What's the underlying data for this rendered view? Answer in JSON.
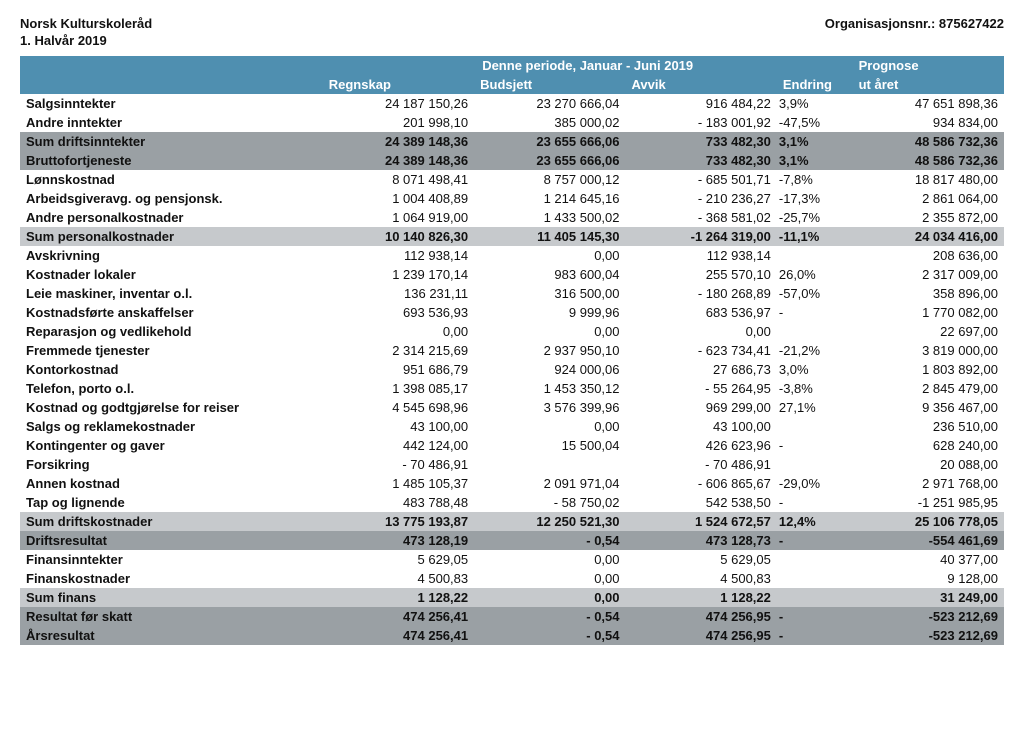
{
  "header": {
    "org_line1": "Norsk Kulturskoleråd",
    "org_line2": "1. Halvår 2019",
    "orgnr_label": "Organisasjonsnr.: 875627422"
  },
  "table": {
    "colors": {
      "header_bg": "#4f8fb0",
      "header_fg": "#ffffff",
      "sum_mid_bg": "#9aa0a4",
      "sum_lite_bg": "#c6c9cc"
    },
    "columns": {
      "period_span": "Denne periode, Januar - Juni 2019",
      "prognose": "Prognose",
      "c1": "Regnskap",
      "c2": "Budsjett",
      "c3": "Avvik",
      "c4": "Endring",
      "c5": "ut året"
    },
    "rows": [
      {
        "style": "plain",
        "label": "Salgsinntekter",
        "regnskap": "24 187 150,26",
        "budsjett": "23 270 666,04",
        "avvik": "916 484,22",
        "endring": "3,9%",
        "prognose": "47 651 898,36"
      },
      {
        "style": "plain",
        "label": "Andre inntekter",
        "regnskap": "201 998,10",
        "budsjett": "385 000,02",
        "avvik": "- 183 001,92",
        "endring": "-47,5%",
        "prognose": "934 834,00"
      },
      {
        "style": "sum-mid",
        "label": "Sum driftsinntekter",
        "regnskap": "24 389 148,36",
        "budsjett": "23 655 666,06",
        "avvik": "733 482,30",
        "endring": "3,1%",
        "prognose": "48 586 732,36"
      },
      {
        "style": "sum-mid",
        "label": "Bruttofortjeneste",
        "regnskap": "24 389 148,36",
        "budsjett": "23 655 666,06",
        "avvik": "733 482,30",
        "endring": "3,1%",
        "prognose": "48 586 732,36"
      },
      {
        "style": "plain",
        "label": "Lønnskostnad",
        "regnskap": "8 071 498,41",
        "budsjett": "8 757 000,12",
        "avvik": "- 685 501,71",
        "endring": "-7,8%",
        "prognose": "18 817 480,00"
      },
      {
        "style": "plain",
        "label": "Arbeidsgiveravg. og pensjonsk.",
        "regnskap": "1 004 408,89",
        "budsjett": "1 214 645,16",
        "avvik": "- 210 236,27",
        "endring": "-17,3%",
        "prognose": "2 861 064,00"
      },
      {
        "style": "plain",
        "label": "Andre personalkostnader",
        "regnskap": "1 064 919,00",
        "budsjett": "1 433 500,02",
        "avvik": "- 368 581,02",
        "endring": "-25,7%",
        "prognose": "2 355 872,00"
      },
      {
        "style": "sum-lite",
        "label": "Sum personalkostnader",
        "regnskap": "10 140 826,30",
        "budsjett": "11 405 145,30",
        "avvik": "-1 264 319,00",
        "endring": "-11,1%",
        "prognose": "24 034 416,00"
      },
      {
        "style": "plain",
        "label": "Avskrivning",
        "regnskap": "112 938,14",
        "budsjett": "0,00",
        "avvik": "112 938,14",
        "endring": "",
        "prognose": "208 636,00"
      },
      {
        "style": "plain",
        "label": "Kostnader lokaler",
        "regnskap": "1 239 170,14",
        "budsjett": "983 600,04",
        "avvik": "255 570,10",
        "endring": "26,0%",
        "prognose": "2 317 009,00"
      },
      {
        "style": "plain",
        "label": "Leie maskiner, inventar o.l.",
        "regnskap": "136 231,11",
        "budsjett": "316 500,00",
        "avvik": "- 180 268,89",
        "endring": "-57,0%",
        "prognose": "358 896,00"
      },
      {
        "style": "plain",
        "label": "Kostnadsførte anskaffelser",
        "regnskap": "693 536,93",
        "budsjett": "9 999,96",
        "avvik": "683 536,97",
        "endring": "-",
        "prognose": "1 770 082,00"
      },
      {
        "style": "plain",
        "label": "Reparasjon og vedlikehold",
        "regnskap": "0,00",
        "budsjett": "0,00",
        "avvik": "0,00",
        "endring": "",
        "prognose": "22 697,00"
      },
      {
        "style": "plain",
        "label": "Fremmede tjenester",
        "regnskap": "2 314 215,69",
        "budsjett": "2 937 950,10",
        "avvik": "- 623 734,41",
        "endring": "-21,2%",
        "prognose": "3 819 000,00"
      },
      {
        "style": "plain",
        "label": "Kontorkostnad",
        "regnskap": "951 686,79",
        "budsjett": "924 000,06",
        "avvik": "27 686,73",
        "endring": "3,0%",
        "prognose": "1 803 892,00"
      },
      {
        "style": "plain",
        "label": "Telefon, porto o.l.",
        "regnskap": "1 398 085,17",
        "budsjett": "1 453 350,12",
        "avvik": "- 55 264,95",
        "endring": "-3,8%",
        "prognose": "2 845 479,00"
      },
      {
        "style": "plain",
        "label": "Kostnad og godtgjørelse for reiser",
        "regnskap": "4 545 698,96",
        "budsjett": "3 576 399,96",
        "avvik": "969 299,00",
        "endring": "27,1%",
        "prognose": "9 356 467,00"
      },
      {
        "style": "plain",
        "label": "Salgs og reklamekostnader",
        "regnskap": "43 100,00",
        "budsjett": "0,00",
        "avvik": "43 100,00",
        "endring": "",
        "prognose": "236 510,00"
      },
      {
        "style": "plain",
        "label": "Kontingenter og gaver",
        "regnskap": "442 124,00",
        "budsjett": "15 500,04",
        "avvik": "426 623,96",
        "endring": "-",
        "prognose": "628 240,00"
      },
      {
        "style": "plain",
        "label": "Forsikring",
        "regnskap": "- 70 486,91",
        "budsjett": "",
        "avvik": "- 70 486,91",
        "endring": "",
        "prognose": "20 088,00"
      },
      {
        "style": "plain",
        "label": "Annen kostnad",
        "regnskap": "1 485 105,37",
        "budsjett": "2 091 971,04",
        "avvik": "- 606 865,67",
        "endring": "-29,0%",
        "prognose": "2 971 768,00"
      },
      {
        "style": "plain",
        "label": "Tap og lignende",
        "regnskap": "483 788,48",
        "budsjett": "- 58 750,02",
        "avvik": "542 538,50",
        "endring": "-",
        "prognose": "-1 251 985,95"
      },
      {
        "style": "sum-lite",
        "label": "Sum driftskostnader",
        "regnskap": "13 775 193,87",
        "budsjett": "12 250 521,30",
        "avvik": "1 524 672,57",
        "endring": "12,4%",
        "prognose": "25 106 778,05"
      },
      {
        "style": "sum-mid",
        "label": "Driftsresultat",
        "regnskap": "473 128,19",
        "budsjett": "- 0,54",
        "avvik": "473 128,73",
        "endring": "-",
        "prognose": "-554 461,69"
      },
      {
        "style": "plain",
        "label": "Finansinntekter",
        "regnskap": "5 629,05",
        "budsjett": "0,00",
        "avvik": "5 629,05",
        "endring": "",
        "prognose": "40 377,00"
      },
      {
        "style": "plain",
        "label": "Finanskostnader",
        "regnskap": "4 500,83",
        "budsjett": "0,00",
        "avvik": "4 500,83",
        "endring": "",
        "prognose": "9 128,00"
      },
      {
        "style": "sum-lite",
        "label": "Sum finans",
        "regnskap": "1 128,22",
        "budsjett": "0,00",
        "avvik": "1 128,22",
        "endring": "",
        "prognose": "31 249,00"
      },
      {
        "style": "sum-mid",
        "label": "Resultat før skatt",
        "regnskap": "474 256,41",
        "budsjett": "- 0,54",
        "avvik": "474 256,95",
        "endring": "-",
        "prognose": "-523 212,69"
      },
      {
        "style": "sum-mid",
        "label": "Årsresultat",
        "regnskap": "474 256,41",
        "budsjett": "- 0,54",
        "avvik": "474 256,95",
        "endring": "-",
        "prognose": "-523 212,69"
      }
    ]
  }
}
